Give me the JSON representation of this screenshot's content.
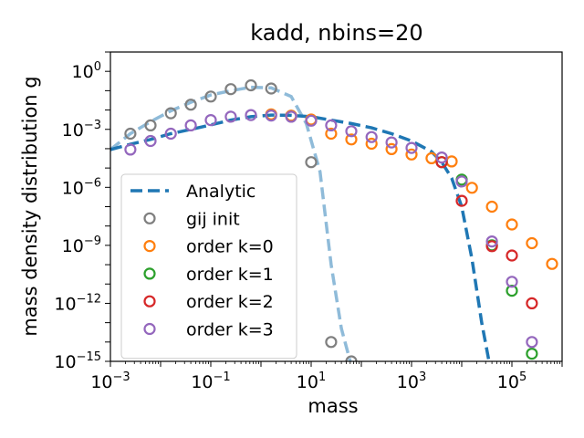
{
  "chart_data": {
    "type": "scatter",
    "title": "kadd, nbins=20",
    "xlabel": "mass",
    "ylabel": "mass density distribution g",
    "xscale": "log",
    "yscale": "log",
    "xlim": [
      0.001,
      1000000
    ],
    "ylim": [
      1e-15,
      10
    ],
    "x_ticks": [
      {
        "value": 0.001,
        "base": "10",
        "exp": "−3"
      },
      {
        "value": 0.1,
        "base": "10",
        "exp": "−1"
      },
      {
        "value": 10,
        "base": "10",
        "exp": "1"
      },
      {
        "value": 1000,
        "base": "10",
        "exp": "3"
      },
      {
        "value": 100000,
        "base": "10",
        "exp": "5"
      }
    ],
    "y_ticks": [
      {
        "value": 1e-15,
        "base": "10",
        "exp": "−15"
      },
      {
        "value": 1e-12,
        "base": "10",
        "exp": "−12"
      },
      {
        "value": 1e-09,
        "base": "10",
        "exp": "−9"
      },
      {
        "value": 1e-06,
        "base": "10",
        "exp": "−6"
      },
      {
        "value": 0.001,
        "base": "10",
        "exp": "−3"
      },
      {
        "value": 1,
        "base": "10",
        "exp": "0"
      }
    ],
    "legend_position": "lower-left",
    "grid": false,
    "lines": [
      {
        "name": "",
        "color": "#8fbbd9",
        "style": "dashed",
        "x": [
          0.001,
          0.0025,
          0.0063,
          0.016,
          0.04,
          0.1,
          0.25,
          0.63,
          1.6,
          4,
          8,
          15,
          25,
          40,
          60
        ],
        "y": [
          9e-05,
          0.0006,
          0.0025,
          0.009,
          0.025,
          0.06,
          0.1,
          0.15,
          0.14,
          0.05,
          0.002,
          6.5e-06,
          1e-10,
          5e-14,
          1e-15
        ]
      },
      {
        "name": "Analytic",
        "color": "#1f77b4",
        "style": "dashed",
        "x": [
          0.001,
          0.0025,
          0.0063,
          0.016,
          0.04,
          0.1,
          0.25,
          0.63,
          1.6,
          4,
          10,
          25,
          63,
          160,
          400,
          1000,
          2500,
          4000,
          6300,
          10000,
          16000,
          25000,
          35000
        ],
        "y": [
          9e-05,
          0.00017,
          0.0003,
          0.0006,
          0.001,
          0.0017,
          0.003,
          0.0045,
          0.0055,
          0.0053,
          0.0045,
          0.003,
          0.002,
          0.0012,
          0.0006,
          0.00025,
          7e-05,
          2e-05,
          3e-06,
          1e-07,
          2e-10,
          1e-13,
          1e-15
        ]
      }
    ],
    "series": [
      {
        "name": "gij init",
        "color": "#7f7f7f",
        "x": [
          0.0025,
          0.0063,
          0.016,
          0.04,
          0.1,
          0.25,
          0.63,
          1.6,
          4,
          10,
          25,
          63
        ],
        "y": [
          0.0006,
          0.0016,
          0.0068,
          0.019,
          0.05,
          0.12,
          0.19,
          0.13,
          0.005,
          2e-05,
          1e-14,
          1e-15
        ]
      },
      {
        "name": "order k=0",
        "color": "#ff7f0e",
        "x": [
          1.6,
          4,
          10,
          25,
          63,
          160,
          400,
          1000,
          2500,
          6300,
          16000,
          40000,
          100000,
          250000,
          630000
        ],
        "y": [
          0.006,
          0.005,
          0.0032,
          0.0006,
          0.0003,
          0.00018,
          9.5e-05,
          5e-05,
          3.2e-05,
          2.2e-05,
          9.5e-07,
          1e-07,
          1.2e-08,
          1.3e-09,
          1.1e-10
        ]
      },
      {
        "name": "order k=1",
        "color": "#2ca02c",
        "x": [
          4000,
          10000,
          40000,
          100000,
          250000
        ],
        "y": [
          2e-05,
          2.5e-06,
          1e-09,
          4.5e-12,
          2.5e-15
        ]
      },
      {
        "name": "order k=2",
        "color": "#d62728",
        "x": [
          4000,
          10000,
          40000,
          100000,
          250000
        ],
        "y": [
          2e-05,
          2e-07,
          9e-10,
          3e-10,
          1e-12
        ]
      },
      {
        "name": "order k=3",
        "color": "#9467bd",
        "x": [
          0.0025,
          0.0063,
          0.016,
          0.04,
          0.1,
          0.25,
          0.63,
          1.6,
          4,
          10,
          25,
          63,
          160,
          400,
          1000,
          4000,
          10000,
          40000,
          100000,
          250000
        ],
        "y": [
          9e-05,
          0.00025,
          0.0006,
          0.0016,
          0.003,
          0.0045,
          0.0055,
          0.0052,
          0.0045,
          0.0028,
          0.0016,
          0.0008,
          0.0004,
          0.00021,
          0.00011,
          3.5e-05,
          2e-06,
          1.6e-09,
          1.3e-11,
          1e-14
        ]
      }
    ]
  }
}
